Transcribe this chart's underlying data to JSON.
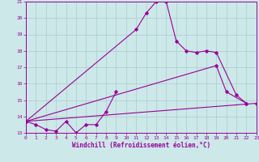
{
  "title": "",
  "xlabel": "Windchill (Refroidissement éolien,°C)",
  "ylabel": "",
  "background_color": "#cce8e8",
  "line_color": "#990099",
  "grid_color": "#aacccc",
  "xlim": [
    0,
    23
  ],
  "ylim": [
    13,
    21
  ],
  "xticks": [
    0,
    1,
    2,
    3,
    4,
    5,
    6,
    7,
    8,
    9,
    10,
    11,
    12,
    13,
    14,
    15,
    16,
    17,
    18,
    19,
    20,
    21,
    22,
    23
  ],
  "yticks": [
    13,
    14,
    15,
    16,
    17,
    18,
    19,
    20,
    21
  ],
  "series1_x": [
    0,
    1,
    2,
    3,
    4,
    5,
    6,
    7,
    8,
    9
  ],
  "series1_y": [
    13.7,
    13.5,
    13.2,
    13.1,
    13.7,
    13.0,
    13.5,
    13.5,
    14.3,
    15.5
  ],
  "series2_x": [
    0,
    23
  ],
  "series2_y": [
    13.7,
    14.8
  ],
  "series3_x": [
    0,
    19,
    20,
    22
  ],
  "series3_y": [
    13.7,
    17.1,
    15.5,
    14.8
  ],
  "series4_x": [
    0,
    11,
    12,
    13,
    14,
    15,
    16,
    17,
    18,
    19,
    21,
    22
  ],
  "series4_y": [
    13.7,
    19.3,
    20.3,
    21.0,
    21.0,
    18.6,
    18.0,
    17.9,
    18.0,
    17.9,
    15.3,
    14.8
  ]
}
